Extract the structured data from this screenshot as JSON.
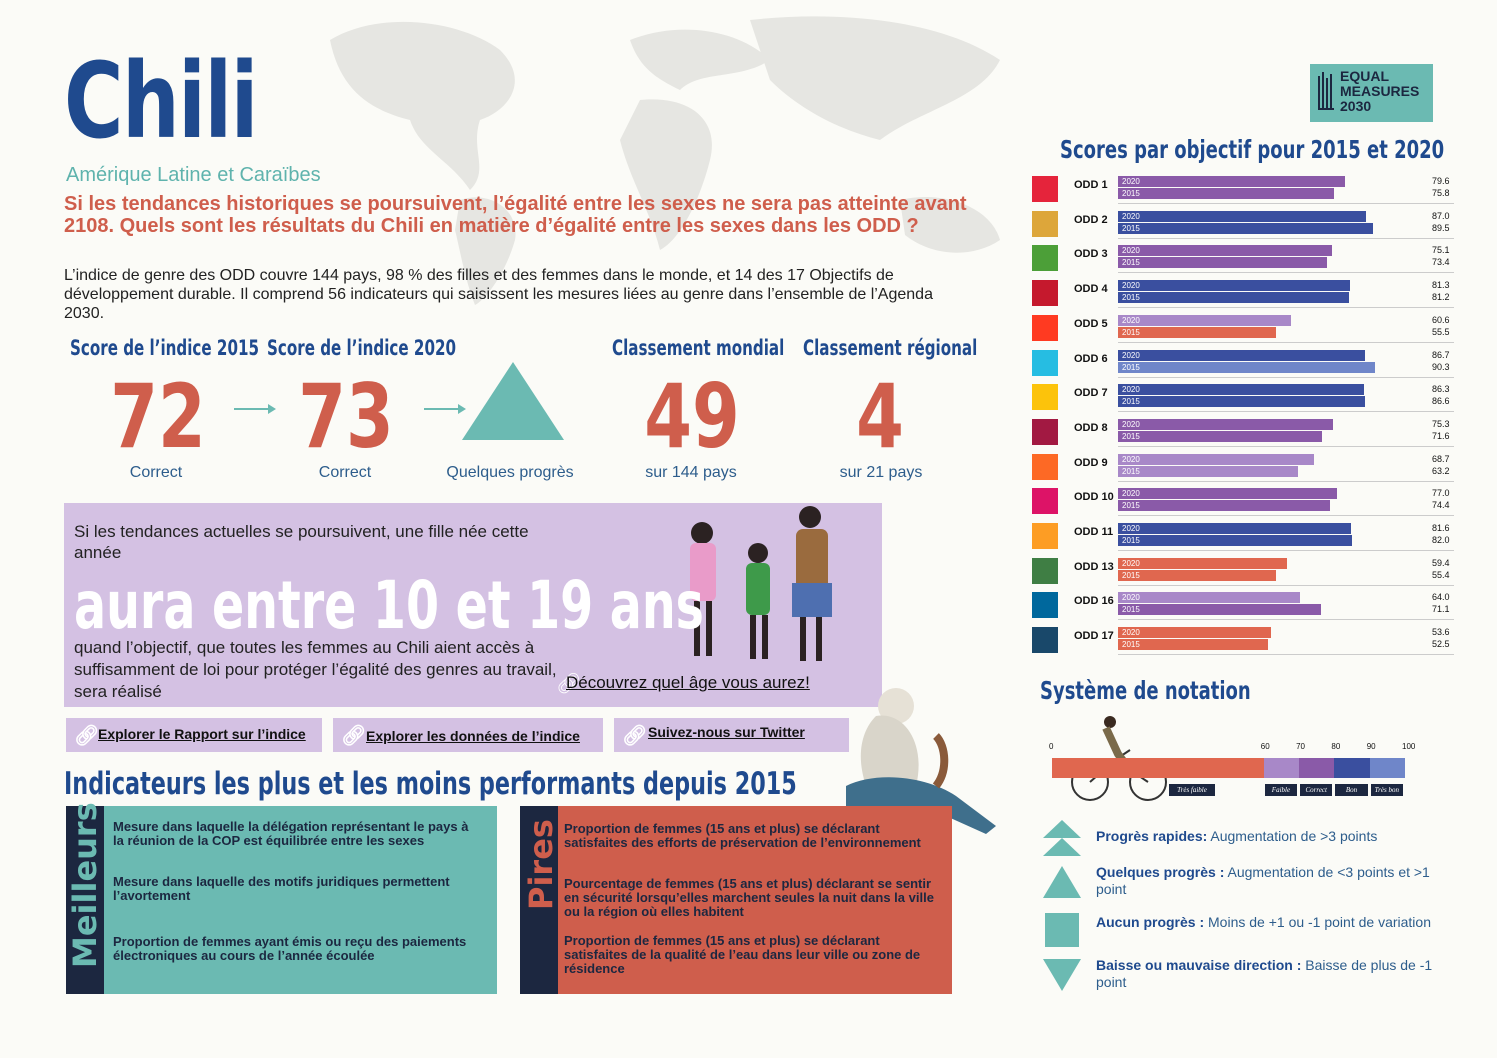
{
  "title": "Chili",
  "region": "Amérique Latine et Caraïbes",
  "lead": "Si les tendances historiques se poursuivent, l’égalité entre les sexes ne sera pas atteinte avant 2108. Quels sont les résultats du Chili en matière d’égalité entre les sexes dans les ODD ?",
  "intro": "L’indice de genre des ODD couvre 144 pays, 98 % des filles et des femmes dans le monde, et 14 des 17 Objectifs de développement durable. Il comprend 56 indicateurs qui saisissent les mesures liées au genre dans l’ensemble de l’Agenda 2030.",
  "kpis": {
    "score2015": {
      "header": "Score de l’indice 2015",
      "value": "72",
      "label": "Correct"
    },
    "score2020": {
      "header": "Score de l’indice 2020",
      "value": "73",
      "label": "Correct"
    },
    "progress": {
      "label": "Quelques progrès"
    },
    "world": {
      "header": "Classement mondial",
      "value": "49",
      "label": "sur 144 pays"
    },
    "regional": {
      "header": "Classement régional",
      "value": "4",
      "label": "sur 21 pays"
    }
  },
  "girl": {
    "top": "Si les tendances actuelles se poursuivent, une fille née cette année",
    "big": "aura entre 10 et 19 ans",
    "bottom": "quand l’objectif, que toutes les femmes au Chili aient accès à suffisamment de loi pour protéger l’égalité des genres au travail, sera réalisé",
    "link": "Découvrez quel âge vous aurez!"
  },
  "links": [
    "Explorer le Rapport sur l’indice",
    "Explorer les données de l’indice",
    "Suivez-nous sur Twitter"
  ],
  "indicators": {
    "title": "Indicateurs les plus et les moins performants depuis 2015",
    "best_label": "Meilleurs",
    "worst_label": "Pires",
    "best": [
      "Mesure dans laquelle la délégation représentant le pays à la réunion de la COP est équilibrée entre les sexes",
      "Mesure dans laquelle des motifs juridiques permettent l’avortement",
      "Proportion de femmes ayant émis ou reçu des paiements électroniques au cours de l’année écoulée"
    ],
    "worst": [
      "Proportion de femmes (15 ans et plus) se déclarant satisfaites des efforts de préservation de l’environnement",
      "Pourcentage de femmes (15 ans et plus) déclarant se sentir en sécurité lorsqu’elles marchent seules la nuit dans la ville ou la région où elles habitent",
      "Proportion de femmes (15 ans et plus) se déclarant satisfaites de la qualité de l’eau dans leur ville ou zone de résidence"
    ]
  },
  "logo": {
    "line1": "EQUAL",
    "line2": "MEASURES",
    "line3": "2030"
  },
  "chart_data": {
    "type": "bar",
    "title": "Scores par objectif pour 2015 et 2020",
    "xlim": [
      0,
      100
    ],
    "year_labels": [
      "2020",
      "2015"
    ],
    "goals": [
      {
        "label": "ODD 1",
        "v2020": 79.6,
        "v2015": 75.8,
        "c2020": "#8a5aa8",
        "c2015": "#8a5aa8",
        "icon": "#e5243b"
      },
      {
        "label": "ODD 2",
        "v2020": 87.0,
        "v2015": 89.5,
        "c2020": "#3a4f9f",
        "c2015": "#3a4f9f",
        "icon": "#dda63a"
      },
      {
        "label": "ODD 3",
        "v2020": 75.1,
        "v2015": 73.4,
        "c2020": "#8a5aa8",
        "c2015": "#8a5aa8",
        "icon": "#4c9f38"
      },
      {
        "label": "ODD 4",
        "v2020": 81.3,
        "v2015": 81.2,
        "c2020": "#3a4f9f",
        "c2015": "#3a4f9f",
        "icon": "#c5192d"
      },
      {
        "label": "ODD 5",
        "v2020": 60.6,
        "v2015": 55.5,
        "c2020": "#a888c8",
        "c2015": "#e0674f",
        "icon": "#ff3a21"
      },
      {
        "label": "ODD 6",
        "v2020": 86.7,
        "v2015": 90.3,
        "c2020": "#3a4f9f",
        "c2015": "#6f86c9",
        "icon": "#26bde2"
      },
      {
        "label": "ODD 7",
        "v2020": 86.3,
        "v2015": 86.6,
        "c2020": "#3a4f9f",
        "c2015": "#3a4f9f",
        "icon": "#fcc30b"
      },
      {
        "label": "ODD 8",
        "v2020": 75.3,
        "v2015": 71.6,
        "c2020": "#8a5aa8",
        "c2015": "#8a5aa8",
        "icon": "#a21942"
      },
      {
        "label": "ODD 9",
        "v2020": 68.7,
        "v2015": 63.2,
        "c2020": "#a888c8",
        "c2015": "#a888c8",
        "icon": "#fd6925"
      },
      {
        "label": "ODD 10",
        "v2020": 77.0,
        "v2015": 74.4,
        "c2020": "#8a5aa8",
        "c2015": "#8a5aa8",
        "icon": "#dd1367"
      },
      {
        "label": "ODD 11",
        "v2020": 81.6,
        "v2015": 82.0,
        "c2020": "#3a4f9f",
        "c2015": "#3a4f9f",
        "icon": "#fd9d24"
      },
      {
        "label": "ODD 13",
        "v2020": 59.4,
        "v2015": 55.4,
        "c2020": "#e0674f",
        "c2015": "#e0674f",
        "icon": "#3f7e44"
      },
      {
        "label": "ODD 16",
        "v2020": 64.0,
        "v2015": 71.1,
        "c2020": "#a888c8",
        "c2015": "#8a5aa8",
        "icon": "#00689d"
      },
      {
        "label": "ODD 17",
        "v2020": 53.6,
        "v2015": 52.5,
        "c2020": "#e0674f",
        "c2015": "#e0674f",
        "icon": "#19486a"
      }
    ]
  },
  "notation": {
    "title": "Système de notation",
    "ticks": [
      "0",
      "60",
      "70",
      "80",
      "90",
      "100"
    ],
    "bands": [
      {
        "label": "Très faible",
        "from": 0,
        "to": 60,
        "color": "#e0674f"
      },
      {
        "label": "Faible",
        "from": 60,
        "to": 70,
        "color": "#a888c8"
      },
      {
        "label": "Correct",
        "from": 70,
        "to": 80,
        "color": "#8a5aa8"
      },
      {
        "label": "Bon",
        "from": 80,
        "to": 90,
        "color": "#3a4f9f"
      },
      {
        "label": "Très bon",
        "from": 90,
        "to": 100,
        "color": "#6f86c9"
      }
    ],
    "legend": [
      {
        "bold": "Progrès rapides:",
        "text": " Augmentation de >3 points",
        "shape": "double-up"
      },
      {
        "bold": "Quelques progrès :",
        "text": " Augmentation de <3 points et >1 point",
        "shape": "up"
      },
      {
        "bold": "Aucun progrès :",
        "text": " Moins de +1 ou -1 point de variation",
        "shape": "square"
      },
      {
        "bold": "Baisse ou mauvaise direction :",
        "text": " Baisse de plus de -1 point",
        "shape": "down"
      }
    ]
  }
}
